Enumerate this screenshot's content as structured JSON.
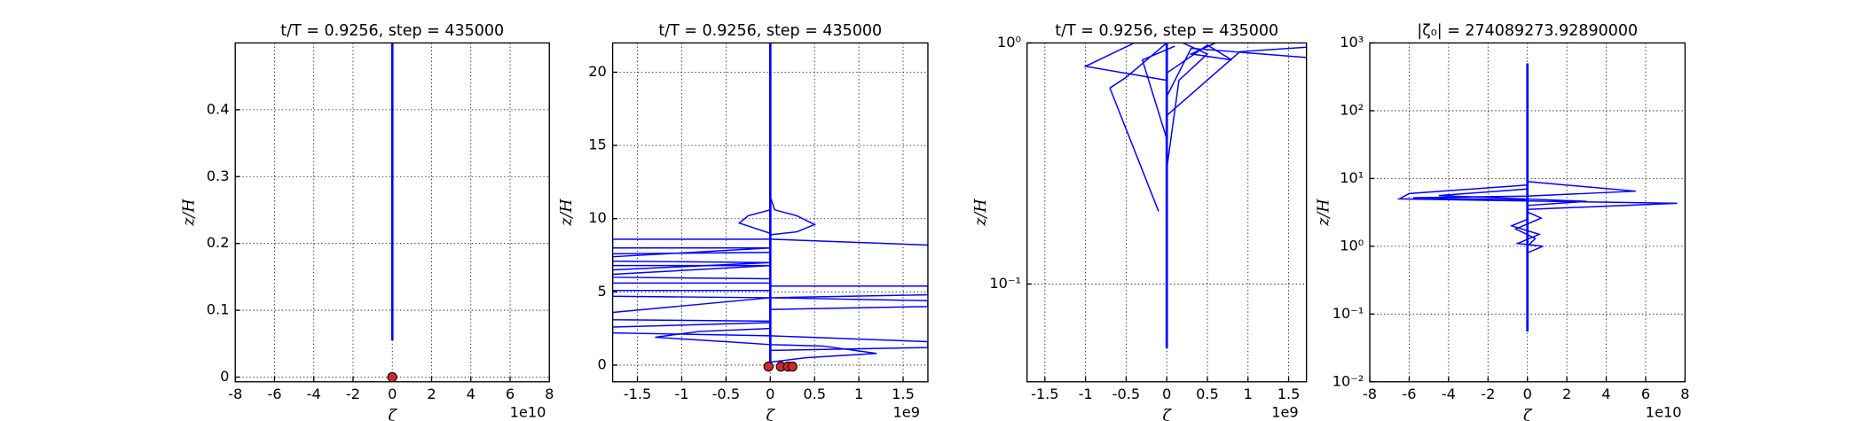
{
  "chart_data": [
    {
      "type": "line",
      "title": "t/T = 0.9256, step = 435000",
      "x_label": "ζ",
      "y_label": "z/H",
      "x_offset": "1e10",
      "xlim": [
        -8,
        8
      ],
      "xticks": [
        -8,
        -6,
        -4,
        -2,
        0,
        2,
        4,
        6,
        8
      ],
      "ylim": [
        -0.007,
        0.5
      ],
      "yticks": [
        0.0,
        0.1,
        0.2,
        0.3,
        0.4
      ],
      "yscale": "linear",
      "grid": true,
      "color": "#0000ff",
      "series": [
        {
          "x": [
            0,
            0
          ],
          "y": [
            0.055,
            0.5
          ]
        }
      ],
      "markers": {
        "x": [
          0
        ],
        "y": [
          0
        ],
        "color": "#d62728"
      }
    },
    {
      "type": "line",
      "title": "t/T = 0.9256, step = 435000",
      "x_label": "ζ",
      "y_label": "z/H",
      "x_offset": "1e9",
      "xlim": [
        -1.78,
        1.78
      ],
      "xticks": [
        -1.5,
        -1.0,
        -0.5,
        0.0,
        0.5,
        1.0,
        1.5
      ],
      "ylim": [
        -1.14,
        22
      ],
      "yticks": [
        0,
        5,
        10,
        15,
        20
      ],
      "yscale": "linear",
      "grid": true,
      "color": "#0000ff",
      "series": [
        {
          "x": [
            0,
            0,
            0
          ],
          "y": [
            -0.2,
            8,
            22
          ]
        },
        {
          "x": [
            0,
            0.05,
            0.3,
            0.5,
            0.3,
            0,
            0
          ],
          "y": [
            11.5,
            10.6,
            10.2,
            9.6,
            9.1,
            8.9,
            8.5
          ]
        },
        {
          "x": [
            0,
            -0.25,
            -0.35,
            -0.15,
            0
          ],
          "y": [
            10.6,
            10.2,
            9.7,
            9.3,
            9.0
          ]
        },
        {
          "x": [
            0,
            -1.78,
            -1.78,
            0,
            -1.78,
            -1.78,
            0,
            -1.78,
            -1.78,
            0
          ],
          "y": [
            8.6,
            8.6,
            8.0,
            8.0,
            7.4,
            6.8,
            6.8,
            6.2,
            5.6,
            5.6
          ]
        },
        {
          "x": [
            0,
            -1.78,
            -1.78,
            0,
            -1.78,
            -1.78,
            0
          ],
          "y": [
            7.7,
            7.6,
            7.1,
            7.0,
            6.5,
            6.0,
            5.9
          ]
        },
        {
          "x": [
            0,
            1.78
          ],
          "y": [
            8.6,
            8.2
          ]
        },
        {
          "x": [
            0,
            -1.78,
            -1.78,
            0,
            -1.78,
            -1.78,
            0
          ],
          "y": [
            5.1,
            5.1,
            4.7,
            4.6,
            3.6,
            3.1,
            3.0
          ]
        },
        {
          "x": [
            0,
            1.78,
            1.78,
            0,
            1.78,
            1.78,
            0
          ],
          "y": [
            5.4,
            5.4,
            4.8,
            4.6,
            4.4,
            4.0,
            3.8
          ]
        },
        {
          "x": [
            0,
            -1.78,
            -1.78,
            0,
            1.78,
            1.78,
            0
          ],
          "y": [
            2.9,
            2.6,
            2.2,
            2.0,
            1.6,
            1.2,
            1.0
          ]
        },
        {
          "x": [
            0,
            -0.8,
            -1.3,
            -0.5,
            0,
            0.6,
            1.2,
            0.4,
            0
          ],
          "y": [
            2.5,
            2.3,
            1.9,
            1.6,
            1.4,
            1.3,
            0.8,
            0.5,
            0.2
          ]
        }
      ],
      "markers": {
        "x": [
          -0.02,
          0.12,
          0.2,
          0.25
        ],
        "y": [
          -0.1,
          -0.1,
          -0.1,
          -0.1
        ],
        "color": "#d62728"
      }
    },
    {
      "type": "line",
      "title": "t/T = 0.9256, step = 435000",
      "x_label": "ζ",
      "y_label": "z/H",
      "x_offset": "1e9",
      "xlim": [
        -1.72,
        1.72
      ],
      "xticks": [
        -1.5,
        -1.0,
        -0.5,
        0.0,
        0.5,
        1.0,
        1.5
      ],
      "ylim": [
        0.0393,
        1
      ],
      "yticks": [
        {
          "value": 0.1,
          "label": "10⁻¹"
        },
        {
          "value": 1,
          "label": "10⁰"
        }
      ],
      "yscale": "log",
      "grid": true,
      "color": "#0000ff",
      "series": [
        {
          "x": [
            0,
            0,
            0
          ],
          "y": [
            0.054,
            0.5,
            1
          ]
        },
        {
          "x": [
            0,
            -1.0,
            -0.4,
            0
          ],
          "y": [
            0.7,
            0.8,
            1.0,
            1.0
          ]
        },
        {
          "x": [
            0,
            0.3,
            1.72
          ],
          "y": [
            0.6,
            0.95,
            0.87
          ]
        },
        {
          "x": [
            0,
            0.9,
            1.72
          ],
          "y": [
            0.5,
            0.92,
            0.96
          ]
        },
        {
          "x": [
            0,
            0.15,
            0.5,
            0.2
          ],
          "y": [
            0.3,
            0.7,
            0.9,
            1.0
          ]
        },
        {
          "x": [
            -0.1,
            -0.7,
            -0.5,
            0
          ],
          "y": [
            0.2,
            0.65,
            0.72,
            1.0
          ]
        },
        {
          "x": [
            0,
            0.5,
            0.8,
            0.3,
            0.6
          ],
          "y": [
            0.75,
            0.98,
            0.85,
            0.9,
            1.0
          ]
        },
        {
          "x": [
            0,
            -0.3,
            0.1
          ],
          "y": [
            0.4,
            0.85,
            0.97
          ]
        }
      ]
    },
    {
      "type": "line",
      "title": "|ζ₀| = 274089273.92890000",
      "x_label": "ζ",
      "y_label": "z/H",
      "x_offset": "1e10",
      "xlim": [
        -8,
        8
      ],
      "xticks": [
        -8,
        -6,
        -4,
        -2,
        0,
        2,
        4,
        6,
        8
      ],
      "ylim": [
        0.01,
        1000
      ],
      "yticks": [
        {
          "value": 0.01,
          "label": "10⁻²"
        },
        {
          "value": 0.1,
          "label": "10⁻¹"
        },
        {
          "value": 1,
          "label": "10⁰"
        },
        {
          "value": 10,
          "label": "10¹"
        },
        {
          "value": 100,
          "label": "10²"
        },
        {
          "value": 1000,
          "label": "10³"
        }
      ],
      "yscale": "log",
      "grid": true,
      "color": "#0000ff",
      "series": [
        {
          "x": [
            0,
            0
          ],
          "y": [
            0.055,
            500
          ]
        },
        {
          "x": [
            0,
            -6,
            -6.5,
            7.6,
            0
          ],
          "y": [
            8,
            6,
            5,
            4.3,
            3.5
          ]
        },
        {
          "x": [
            0,
            5.5,
            0,
            -5.8,
            0
          ],
          "y": [
            9,
            6.5,
            5.5,
            5.2,
            4.8
          ]
        },
        {
          "x": [
            0,
            -4.5,
            3,
            0
          ],
          "y": [
            7,
            5.6,
            4.6,
            4.0
          ]
        },
        {
          "x": [
            0,
            -0.8,
            0.6,
            -0.5,
            0.8,
            0
          ],
          "y": [
            2.5,
            2,
            1.5,
            1.1,
            1,
            0.8
          ]
        },
        {
          "x": [
            0,
            0.7,
            -0.6,
            0.4,
            0
          ],
          "y": [
            3.2,
            2.6,
            1.8,
            1.3,
            1.0
          ]
        }
      ]
    }
  ]
}
